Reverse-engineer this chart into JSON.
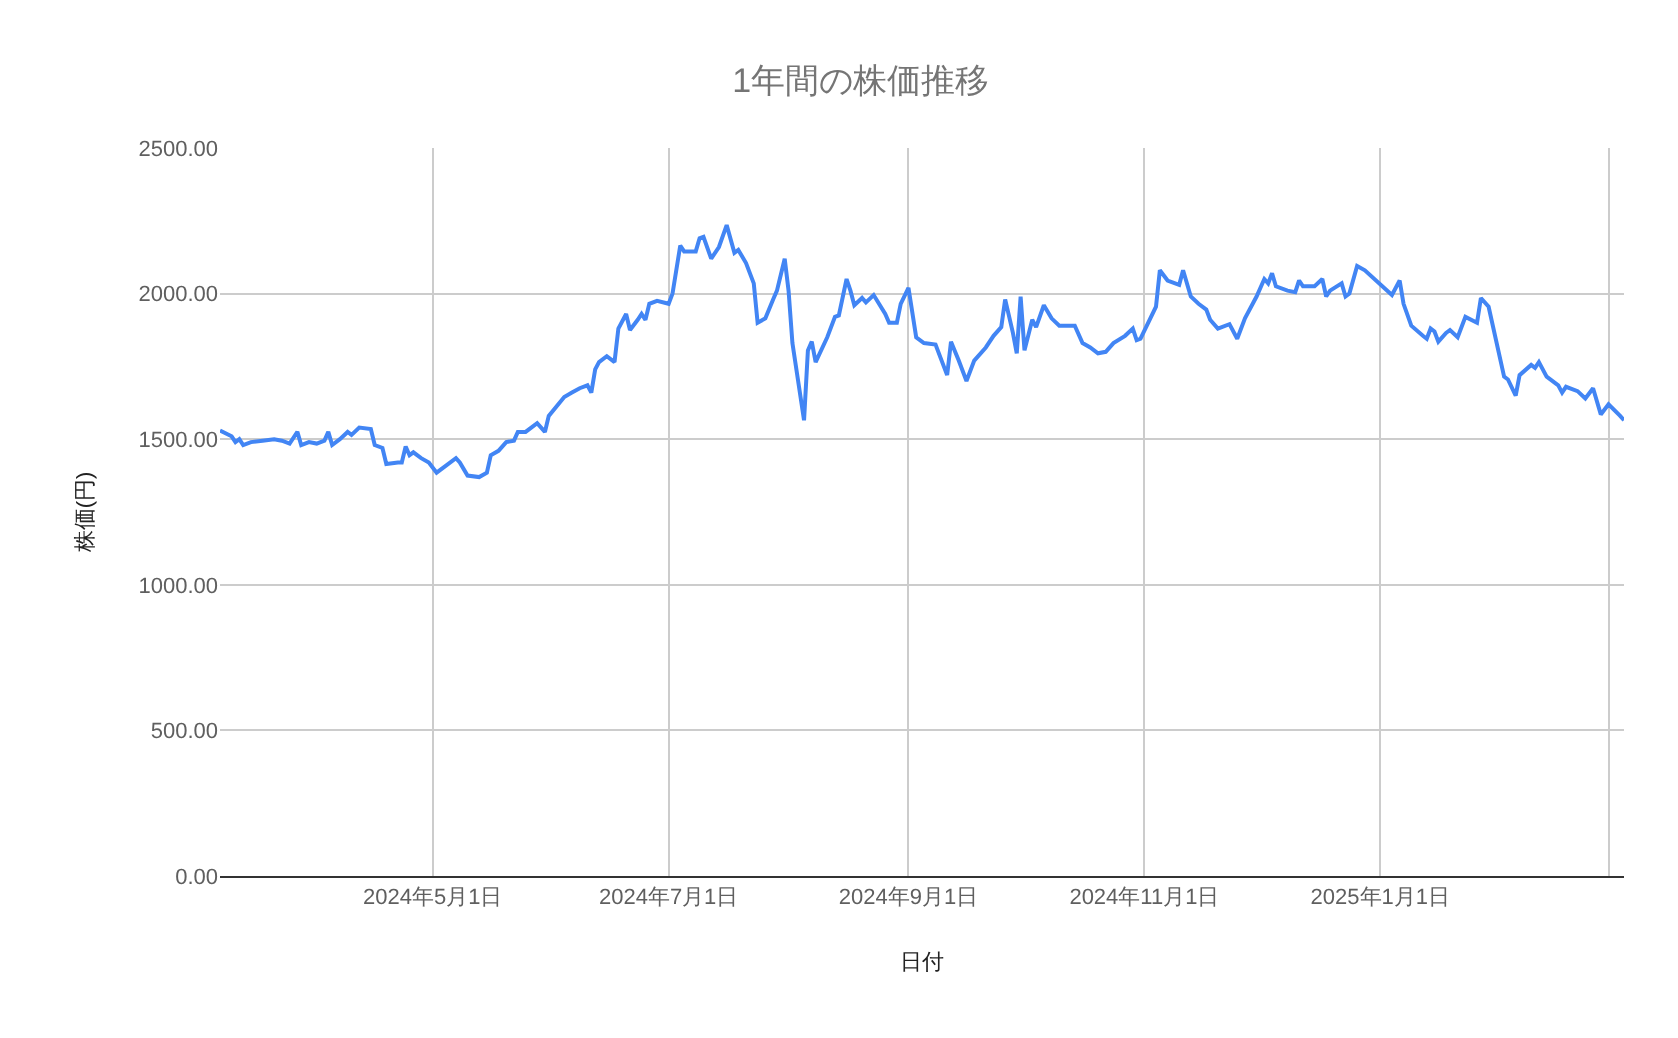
{
  "chart_data": {
    "type": "line",
    "title": "1年間の株価推移",
    "xlabel": "日付",
    "ylabel": "株価(円)",
    "color": "#4285f4",
    "line_style": "solid",
    "grid": true,
    "xlim": [
      "2024-03-07",
      "2025-03-05"
    ],
    "xticks": [
      {
        "value": "2024-05-01",
        "label": "2024年5月1日"
      },
      {
        "value": "2024-07-01",
        "label": "2024年7月1日"
      },
      {
        "value": "2024-09-01",
        "label": "2024年9月1日"
      },
      {
        "value": "2024-11-01",
        "label": "2024年11月1日"
      },
      {
        "value": "2025-01-01",
        "label": "2025年1月1日"
      },
      {
        "value": "2025-03-01",
        "label": null
      }
    ],
    "ylim": [
      0,
      2500
    ],
    "yticks": [
      {
        "value": 0,
        "label": "0.00"
      },
      {
        "value": 500,
        "label": "500.00"
      },
      {
        "value": 1000,
        "label": "1000.00"
      },
      {
        "value": 1500,
        "label": "1500.00"
      },
      {
        "value": 2000,
        "label": "2000.00"
      },
      {
        "value": 2500,
        "label": "2500.00"
      }
    ],
    "x": [
      "2024-03-07",
      "2024-03-10",
      "2024-03-11",
      "2024-03-12",
      "2024-03-13",
      "2024-03-15",
      "2024-03-18",
      "2024-03-21",
      "2024-03-23",
      "2024-03-25",
      "2024-03-27",
      "2024-03-28",
      "2024-03-30",
      "2024-04-01",
      "2024-04-03",
      "2024-04-04",
      "2024-04-05",
      "2024-04-07",
      "2024-04-09",
      "2024-04-10",
      "2024-04-12",
      "2024-04-15",
      "2024-04-16",
      "2024-04-18",
      "2024-04-19",
      "2024-04-22",
      "2024-04-23",
      "2024-04-24",
      "2024-04-25",
      "2024-04-26",
      "2024-04-28",
      "2024-04-30",
      "2024-05-02",
      "2024-05-04",
      "2024-05-07",
      "2024-05-08",
      "2024-05-10",
      "2024-05-13",
      "2024-05-15",
      "2024-05-16",
      "2024-05-18",
      "2024-05-20",
      "2024-05-22",
      "2024-05-23",
      "2024-05-25",
      "2024-05-28",
      "2024-05-30",
      "2024-05-31",
      "2024-06-04",
      "2024-06-06",
      "2024-06-08",
      "2024-06-10",
      "2024-06-11",
      "2024-06-12",
      "2024-06-13",
      "2024-06-15",
      "2024-06-17",
      "2024-06-18",
      "2024-06-20",
      "2024-06-21",
      "2024-06-23",
      "2024-06-24",
      "2024-06-25",
      "2024-06-26",
      "2024-06-28",
      "2024-07-01",
      "2024-07-02",
      "2024-07-04",
      "2024-07-05",
      "2024-07-08",
      "2024-07-09",
      "2024-07-10",
      "2024-07-12",
      "2024-07-14",
      "2024-07-16",
      "2024-07-18",
      "2024-07-19",
      "2024-07-21",
      "2024-07-23",
      "2024-07-24",
      "2024-07-26",
      "2024-07-28",
      "2024-07-29",
      "2024-07-31",
      "2024-08-01",
      "2024-08-02",
      "2024-08-05",
      "2024-08-06",
      "2024-08-07",
      "2024-08-08",
      "2024-08-11",
      "2024-08-13",
      "2024-08-14",
      "2024-08-16",
      "2024-08-17",
      "2024-08-18",
      "2024-08-20",
      "2024-08-21",
      "2024-08-23",
      "2024-08-26",
      "2024-08-27",
      "2024-08-29",
      "2024-08-30",
      "2024-09-01",
      "2024-09-03",
      "2024-09-05",
      "2024-09-08",
      "2024-09-11",
      "2024-09-12",
      "2024-09-14",
      "2024-09-16",
      "2024-09-18",
      "2024-09-21",
      "2024-09-23",
      "2024-09-25",
      "2024-09-26",
      "2024-09-28",
      "2024-09-29",
      "2024-09-30",
      "2024-10-01",
      "2024-10-03",
      "2024-10-04",
      "2024-10-06",
      "2024-10-08",
      "2024-10-10",
      "2024-10-14",
      "2024-10-16",
      "2024-10-18",
      "2024-10-20",
      "2024-10-22",
      "2024-10-24",
      "2024-10-27",
      "2024-10-29",
      "2024-10-30",
      "2024-10-31",
      "2024-11-04",
      "2024-11-05",
      "2024-11-07",
      "2024-11-10",
      "2024-11-11",
      "2024-11-13",
      "2024-11-15",
      "2024-11-17",
      "2024-11-18",
      "2024-11-20",
      "2024-11-23",
      "2024-11-25",
      "2024-11-27",
      "2024-11-30",
      "2024-12-02",
      "2024-12-03",
      "2024-12-04",
      "2024-12-05",
      "2024-12-08",
      "2024-12-10",
      "2024-12-11",
      "2024-12-12",
      "2024-12-15",
      "2024-12-17",
      "2024-12-18",
      "2024-12-19",
      "2024-12-22",
      "2024-12-23",
      "2024-12-24",
      "2024-12-26",
      "2024-12-28",
      "2025-01-04",
      "2025-01-06",
      "2025-01-07",
      "2025-01-09",
      "2025-01-12",
      "2025-01-13",
      "2025-01-14",
      "2025-01-15",
      "2025-01-16",
      "2025-01-18",
      "2025-01-19",
      "2025-01-21",
      "2025-01-23",
      "2025-01-26",
      "2025-01-27",
      "2025-01-29",
      "2025-02-02",
      "2025-02-03",
      "2025-02-05",
      "2025-02-06",
      "2025-02-09",
      "2025-02-10",
      "2025-02-11",
      "2025-02-13",
      "2025-02-16",
      "2025-02-17",
      "2025-02-18",
      "2025-02-21",
      "2025-02-23",
      "2025-02-25",
      "2025-02-27",
      "2025-03-01",
      "2025-03-04",
      "2025-03-05"
    ],
    "values": [
      1530,
      1510,
      1490,
      1500,
      1480,
      1490,
      1495,
      1500,
      1495,
      1485,
      1525,
      1480,
      1490,
      1485,
      1495,
      1525,
      1480,
      1500,
      1525,
      1515,
      1540,
      1535,
      1480,
      1470,
      1415,
      1420,
      1420,
      1475,
      1445,
      1455,
      1435,
      1420,
      1385,
      1405,
      1435,
      1420,
      1375,
      1370,
      1385,
      1445,
      1460,
      1490,
      1495,
      1525,
      1525,
      1555,
      1525,
      1580,
      1645,
      1660,
      1675,
      1685,
      1660,
      1740,
      1765,
      1785,
      1765,
      1880,
      1930,
      1875,
      1910,
      1930,
      1910,
      1965,
      1975,
      1965,
      2000,
      2165,
      2145,
      2145,
      2190,
      2195,
      2120,
      2160,
      2235,
      2140,
      2150,
      2105,
      2035,
      1900,
      1915,
      1980,
      2010,
      2120,
      2010,
      1830,
      1565,
      1805,
      1835,
      1765,
      1850,
      1920,
      1925,
      2050,
      2010,
      1960,
      1985,
      1970,
      1995,
      1930,
      1900,
      1900,
      1965,
      2020,
      1850,
      1830,
      1825,
      1720,
      1835,
      1770,
      1700,
      1770,
      1815,
      1855,
      1885,
      1980,
      1865,
      1795,
      1990,
      1805,
      1910,
      1885,
      1960,
      1915,
      1890,
      1890,
      1830,
      1815,
      1795,
      1800,
      1830,
      1855,
      1880,
      1840,
      1845,
      1955,
      2080,
      2045,
      2030,
      2080,
      1990,
      1965,
      1945,
      1910,
      1880,
      1895,
      1845,
      1915,
      1990,
      2050,
      2035,
      2070,
      2025,
      2010,
      2005,
      2045,
      2025,
      2025,
      2050,
      1990,
      2010,
      2035,
      1990,
      2000,
      2095,
      2080,
      1995,
      2045,
      1965,
      1890,
      1855,
      1845,
      1880,
      1870,
      1835,
      1865,
      1875,
      1850,
      1920,
      1900,
      1985,
      1955,
      1715,
      1705,
      1650,
      1720,
      1755,
      1745,
      1765,
      1715,
      1685,
      1660,
      1680,
      1665,
      1640,
      1675,
      1585,
      1620,
      1580,
      1565
    ]
  }
}
